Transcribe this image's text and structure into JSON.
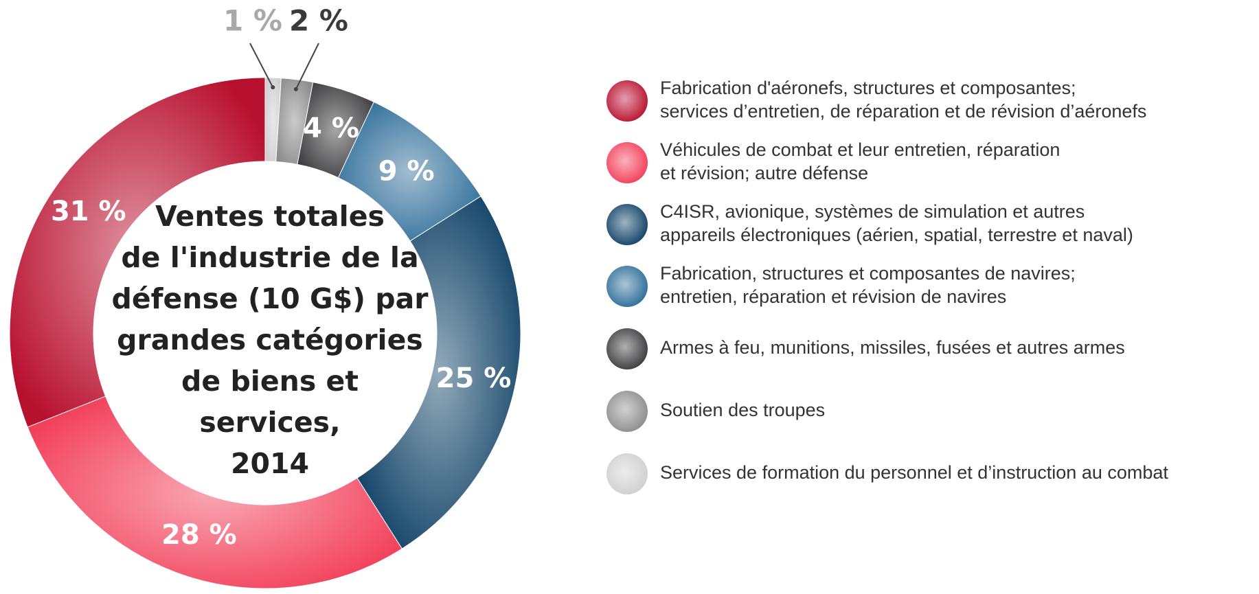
{
  "chart_data": {
    "type": "donut",
    "title": [
      "Ventes totales",
      "de l'industrie de la",
      "défense (10 G$) par",
      "grandes catégories",
      "de biens et",
      "services,",
      "2014"
    ],
    "categories": [
      [
        "Fabrication d'aéronefs, structures et composantes;",
        "services d’entretien, de réparation et de révision d’aéronefs"
      ],
      [
        "Véhicules de combat et leur entretien, réparation",
        "et révision; autre défense"
      ],
      [
        "C4ISR, avionique, systèmes de simulation et autres",
        "appareils électroniques (aérien, spatial, terrestre et naval)"
      ],
      [
        "Fabrication, structures et composantes de navires;",
        "entretien, réparation et révision de navires"
      ],
      [
        "Armes à feu, munitions, missiles, fusées et autres armes"
      ],
      [
        "Soutien des troupes"
      ],
      [
        "Services de formation du personnel et d’instruction au combat"
      ]
    ],
    "values": [
      31,
      28,
      25,
      9,
      4,
      2,
      1
    ],
    "value_labels": [
      "31 %",
      "28 %",
      "25 %",
      "9 %",
      "4 %",
      "2 %",
      "1 %"
    ],
    "colors": [
      "#b8102f",
      "#f23d58",
      "#0f4166",
      "#2d6d98",
      "#3a3a3c",
      "#8c8c8c",
      "#cfcfcf"
    ],
    "label_colors": [
      "#ffffff",
      "#ffffff",
      "#ffffff",
      "#ffffff",
      "#ffffff",
      "#3a3a3c",
      "#a8a8a8"
    ],
    "direction": "clockwise-from-top-reverse-legend"
  }
}
